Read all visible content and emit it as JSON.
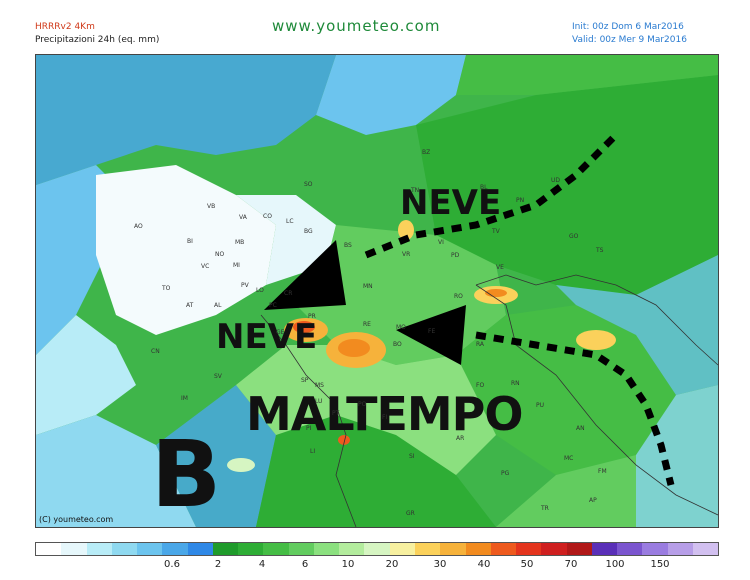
{
  "header": {
    "model": "HRRRv2 4Km",
    "parameter": "Precipitazioni 24h (eq. mm)",
    "site": "www.youmeteo.com",
    "init": "Init: 00z Dom 6   Mar2016",
    "valid": "Valid: 00z Mer  9  Mar2016"
  },
  "annotations": {
    "neve_north": "NEVE",
    "neve_west": "NEVE",
    "maltempo": "MALTEMPO",
    "low_symbol": "B",
    "copyright": "(C) youmeteo.com"
  },
  "cities": [
    {
      "code": "SO"
    },
    {
      "code": "BZ"
    },
    {
      "code": "TN"
    },
    {
      "code": "BL"
    },
    {
      "code": "UD"
    },
    {
      "code": "PN"
    },
    {
      "code": "TV"
    },
    {
      "code": "VI"
    },
    {
      "code": "VR"
    },
    {
      "code": "PD"
    },
    {
      "code": "VE"
    },
    {
      "code": "BS"
    },
    {
      "code": "BG"
    },
    {
      "code": "LC"
    },
    {
      "code": "CO"
    },
    {
      "code": "VA"
    },
    {
      "code": "VB"
    },
    {
      "code": "NO"
    },
    {
      "code": "MI"
    },
    {
      "code": "MB"
    },
    {
      "code": "BI"
    },
    {
      "code": "VC"
    },
    {
      "code": "AO"
    },
    {
      "code": "TO"
    },
    {
      "code": "AT"
    },
    {
      "code": "AL"
    },
    {
      "code": "CN"
    },
    {
      "code": "PV"
    },
    {
      "code": "LO"
    },
    {
      "code": "CR"
    },
    {
      "code": "PC"
    },
    {
      "code": "PR"
    },
    {
      "code": "RE"
    },
    {
      "code": "MO"
    },
    {
      "code": "MN"
    },
    {
      "code": "RO"
    },
    {
      "code": "FE"
    },
    {
      "code": "BO"
    },
    {
      "code": "RA"
    },
    {
      "code": "FO"
    },
    {
      "code": "RN"
    },
    {
      "code": "PU"
    },
    {
      "code": "AN"
    },
    {
      "code": "MC"
    },
    {
      "code": "FM"
    },
    {
      "code": "AP"
    },
    {
      "code": "PG"
    },
    {
      "code": "AR"
    },
    {
      "code": "SI"
    },
    {
      "code": "FI"
    },
    {
      "code": "PO"
    },
    {
      "code": "PT"
    },
    {
      "code": "LU"
    },
    {
      "code": "PI"
    },
    {
      "code": "LI"
    },
    {
      "code": "MS"
    },
    {
      "code": "SP"
    },
    {
      "code": "GE"
    },
    {
      "code": "SV"
    },
    {
      "code": "IM"
    },
    {
      "code": "GR"
    },
    {
      "code": "TR"
    },
    {
      "code": "TS"
    },
    {
      "code": "GO"
    }
  ],
  "legend": {
    "colors": [
      "#ffffff",
      "#e6f7fb",
      "#b8ecf7",
      "#8fd9f0",
      "#6cc4ee",
      "#4aa7e8",
      "#2f88e6",
      "#1f9b2b",
      "#2ead35",
      "#45bd45",
      "#62cc5f",
      "#8be07f",
      "#b3ec9d",
      "#d6f5c2",
      "#f7f0a0",
      "#fbd15b",
      "#f6b23b",
      "#f28b1f",
      "#ee5a1e",
      "#e4341d",
      "#cf1f1f",
      "#b11818",
      "#5a2fb8",
      "#7b55cf",
      "#9a7ce0",
      "#b79ee8",
      "#d2c0f0"
    ],
    "tick_labels": [
      "0.6",
      "2",
      "4",
      "6",
      "10",
      "20",
      "30",
      "40",
      "50",
      "70",
      "100",
      "150"
    ]
  }
}
